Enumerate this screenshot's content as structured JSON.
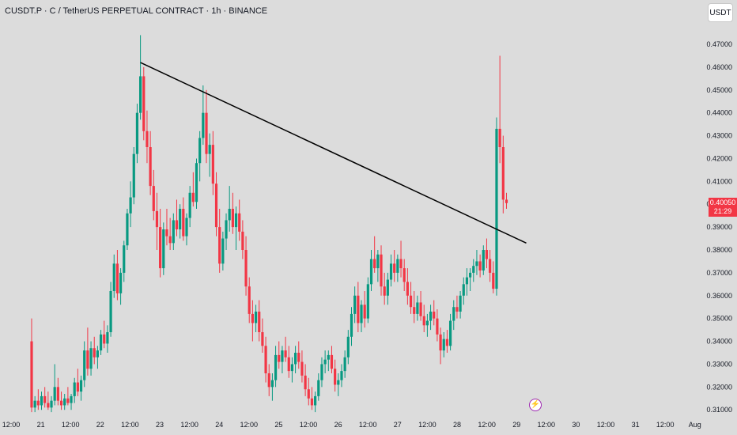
{
  "header": {
    "title": "CUSDT.P · C / TetherUS PERPETUAL CONTRACT · 1h · BINANCE"
  },
  "toolbar": {
    "currency_label": "USDT"
  },
  "last_price": {
    "value": "0.40050",
    "countdown": "21:29",
    "color": "#f23645"
  },
  "colors": {
    "up": "#089981",
    "down": "#f23645",
    "trendline": "#000000",
    "background": "#dcdcdc"
  },
  "icons": {
    "event_marker": "lightning-icon"
  },
  "chart_data": {
    "type": "candlestick",
    "title": "CUSDT.P · C / TetherUS PERPETUAL CONTRACT · 1h · BINANCE",
    "ylim": [
      0.308,
      0.479
    ],
    "y_ticks": [
      "0.47000",
      "0.46000",
      "0.45000",
      "0.44000",
      "0.43000",
      "0.42000",
      "0.41000",
      "0.40000",
      "0.39000",
      "0.38000",
      "0.37000",
      "0.36000",
      "0.35000",
      "0.34000",
      "0.33000",
      "0.32000",
      "0.31000"
    ],
    "x_ticks": [
      "12:00",
      "21",
      "12:00",
      "22",
      "12:00",
      "23",
      "12:00",
      "24",
      "12:00",
      "25",
      "12:00",
      "26",
      "12:00",
      "27",
      "12:00",
      "28",
      "12:00",
      "29",
      "12:00",
      "30",
      "12:00",
      "31",
      "12:00",
      "Aug"
    ],
    "grid": false,
    "series": [
      {
        "values": [
          [
            0.34,
            0.35,
            0.309,
            0.311
          ],
          [
            0.311,
            0.316,
            0.309,
            0.314
          ],
          [
            0.314,
            0.319,
            0.31,
            0.312
          ],
          [
            0.312,
            0.318,
            0.31,
            0.316
          ],
          [
            0.316,
            0.32,
            0.311,
            0.313
          ],
          [
            0.313,
            0.318,
            0.31,
            0.311
          ],
          [
            0.311,
            0.316,
            0.309,
            0.314
          ],
          [
            0.314,
            0.33,
            0.312,
            0.32
          ],
          [
            0.32,
            0.324,
            0.312,
            0.314
          ],
          [
            0.314,
            0.318,
            0.31,
            0.312
          ],
          [
            0.312,
            0.317,
            0.31,
            0.315
          ],
          [
            0.315,
            0.32,
            0.312,
            0.313
          ],
          [
            0.313,
            0.317,
            0.31,
            0.316
          ],
          [
            0.316,
            0.324,
            0.313,
            0.322
          ],
          [
            0.322,
            0.328,
            0.316,
            0.318
          ],
          [
            0.318,
            0.325,
            0.314,
            0.323
          ],
          [
            0.323,
            0.34,
            0.32,
            0.336
          ],
          [
            0.336,
            0.346,
            0.325,
            0.328
          ],
          [
            0.328,
            0.34,
            0.325,
            0.337
          ],
          [
            0.337,
            0.342,
            0.33,
            0.333
          ],
          [
            0.333,
            0.338,
            0.328,
            0.336
          ],
          [
            0.336,
            0.345,
            0.334,
            0.343
          ],
          [
            0.343,
            0.349,
            0.337,
            0.339
          ],
          [
            0.339,
            0.347,
            0.335,
            0.344
          ],
          [
            0.344,
            0.366,
            0.342,
            0.362
          ],
          [
            0.362,
            0.378,
            0.359,
            0.374
          ],
          [
            0.374,
            0.38,
            0.358,
            0.361
          ],
          [
            0.361,
            0.372,
            0.356,
            0.37
          ],
          [
            0.37,
            0.384,
            0.366,
            0.382
          ],
          [
            0.382,
            0.398,
            0.38,
            0.396
          ],
          [
            0.396,
            0.41,
            0.39,
            0.403
          ],
          [
            0.403,
            0.425,
            0.4,
            0.422
          ],
          [
            0.422,
            0.444,
            0.418,
            0.44
          ],
          [
            0.44,
            0.474,
            0.437,
            0.456
          ],
          [
            0.456,
            0.46,
            0.428,
            0.432
          ],
          [
            0.432,
            0.441,
            0.418,
            0.425
          ],
          [
            0.425,
            0.432,
            0.404,
            0.408
          ],
          [
            0.408,
            0.415,
            0.393,
            0.397
          ],
          [
            0.397,
            0.405,
            0.38,
            0.39
          ],
          [
            0.39,
            0.398,
            0.368,
            0.372
          ],
          [
            0.372,
            0.392,
            0.369,
            0.389
          ],
          [
            0.389,
            0.398,
            0.382,
            0.386
          ],
          [
            0.386,
            0.394,
            0.38,
            0.383
          ],
          [
            0.383,
            0.396,
            0.38,
            0.393
          ],
          [
            0.393,
            0.402,
            0.386,
            0.389
          ],
          [
            0.389,
            0.4,
            0.385,
            0.398
          ],
          [
            0.398,
            0.403,
            0.384,
            0.386
          ],
          [
            0.386,
            0.396,
            0.382,
            0.394
          ],
          [
            0.394,
            0.408,
            0.39,
            0.405
          ],
          [
            0.405,
            0.414,
            0.399,
            0.401
          ],
          [
            0.401,
            0.42,
            0.398,
            0.418
          ],
          [
            0.418,
            0.432,
            0.41,
            0.429
          ],
          [
            0.429,
            0.452,
            0.426,
            0.44
          ],
          [
            0.44,
            0.45,
            0.418,
            0.422
          ],
          [
            0.422,
            0.431,
            0.412,
            0.426
          ],
          [
            0.426,
            0.432,
            0.404,
            0.409
          ],
          [
            0.409,
            0.414,
            0.386,
            0.39
          ],
          [
            0.39,
            0.398,
            0.37,
            0.374
          ],
          [
            0.374,
            0.388,
            0.371,
            0.385
          ],
          [
            0.385,
            0.396,
            0.38,
            0.393
          ],
          [
            0.393,
            0.408,
            0.388,
            0.398
          ],
          [
            0.398,
            0.405,
            0.387,
            0.39
          ],
          [
            0.39,
            0.399,
            0.38,
            0.396
          ],
          [
            0.396,
            0.402,
            0.384,
            0.388
          ],
          [
            0.388,
            0.393,
            0.376,
            0.38
          ],
          [
            0.38,
            0.386,
            0.36,
            0.364
          ],
          [
            0.364,
            0.368,
            0.348,
            0.352
          ],
          [
            0.352,
            0.358,
            0.34,
            0.348
          ],
          [
            0.348,
            0.356,
            0.344,
            0.353
          ],
          [
            0.353,
            0.358,
            0.34,
            0.344
          ],
          [
            0.344,
            0.35,
            0.335,
            0.338
          ],
          [
            0.338,
            0.342,
            0.322,
            0.326
          ],
          [
            0.326,
            0.33,
            0.316,
            0.32
          ],
          [
            0.32,
            0.326,
            0.314,
            0.323
          ],
          [
            0.323,
            0.338,
            0.32,
            0.334
          ],
          [
            0.334,
            0.34,
            0.328,
            0.331
          ],
          [
            0.331,
            0.338,
            0.326,
            0.336
          ],
          [
            0.336,
            0.342,
            0.331,
            0.333
          ],
          [
            0.333,
            0.338,
            0.324,
            0.327
          ],
          [
            0.327,
            0.333,
            0.322,
            0.33
          ],
          [
            0.33,
            0.338,
            0.326,
            0.335
          ],
          [
            0.335,
            0.34,
            0.328,
            0.331
          ],
          [
            0.331,
            0.336,
            0.322,
            0.325
          ],
          [
            0.325,
            0.33,
            0.316,
            0.319
          ],
          [
            0.319,
            0.324,
            0.312,
            0.315
          ],
          [
            0.315,
            0.32,
            0.31,
            0.312
          ],
          [
            0.312,
            0.318,
            0.309,
            0.316
          ],
          [
            0.316,
            0.326,
            0.314,
            0.323
          ],
          [
            0.323,
            0.333,
            0.32,
            0.33
          ],
          [
            0.33,
            0.336,
            0.326,
            0.332
          ],
          [
            0.332,
            0.336,
            0.327,
            0.334
          ],
          [
            0.334,
            0.338,
            0.326,
            0.328
          ],
          [
            0.328,
            0.332,
            0.318,
            0.321
          ],
          [
            0.321,
            0.326,
            0.316,
            0.323
          ],
          [
            0.323,
            0.33,
            0.32,
            0.327
          ],
          [
            0.327,
            0.336,
            0.324,
            0.333
          ],
          [
            0.333,
            0.345,
            0.33,
            0.342
          ],
          [
            0.342,
            0.355,
            0.338,
            0.352
          ],
          [
            0.352,
            0.364,
            0.348,
            0.36
          ],
          [
            0.36,
            0.366,
            0.344,
            0.348
          ],
          [
            0.348,
            0.358,
            0.344,
            0.356
          ],
          [
            0.356,
            0.362,
            0.346,
            0.35
          ],
          [
            0.35,
            0.368,
            0.348,
            0.365
          ],
          [
            0.365,
            0.38,
            0.362,
            0.376
          ],
          [
            0.376,
            0.386,
            0.37,
            0.372
          ],
          [
            0.372,
            0.38,
            0.366,
            0.378
          ],
          [
            0.378,
            0.382,
            0.36,
            0.364
          ],
          [
            0.364,
            0.37,
            0.356,
            0.36
          ],
          [
            0.36,
            0.37,
            0.356,
            0.367
          ],
          [
            0.367,
            0.378,
            0.364,
            0.374
          ],
          [
            0.374,
            0.38,
            0.366,
            0.37
          ],
          [
            0.37,
            0.378,
            0.366,
            0.376
          ],
          [
            0.376,
            0.384,
            0.368,
            0.372
          ],
          [
            0.372,
            0.376,
            0.362,
            0.366
          ],
          [
            0.366,
            0.372,
            0.356,
            0.36
          ],
          [
            0.36,
            0.366,
            0.352,
            0.355
          ],
          [
            0.355,
            0.362,
            0.348,
            0.352
          ],
          [
            0.352,
            0.36,
            0.349,
            0.357
          ],
          [
            0.357,
            0.362,
            0.349,
            0.351
          ],
          [
            0.351,
            0.356,
            0.344,
            0.347
          ],
          [
            0.347,
            0.352,
            0.342,
            0.349
          ],
          [
            0.349,
            0.356,
            0.345,
            0.353
          ],
          [
            0.353,
            0.358,
            0.347,
            0.35
          ],
          [
            0.35,
            0.354,
            0.34,
            0.343
          ],
          [
            0.343,
            0.346,
            0.33,
            0.336
          ],
          [
            0.336,
            0.344,
            0.333,
            0.341
          ],
          [
            0.341,
            0.345,
            0.335,
            0.338
          ],
          [
            0.338,
            0.352,
            0.336,
            0.349
          ],
          [
            0.349,
            0.358,
            0.345,
            0.355
          ],
          [
            0.355,
            0.36,
            0.35,
            0.353
          ],
          [
            0.353,
            0.362,
            0.35,
            0.36
          ],
          [
            0.36,
            0.368,
            0.356,
            0.365
          ],
          [
            0.365,
            0.372,
            0.36,
            0.368
          ],
          [
            0.368,
            0.372,
            0.362,
            0.37
          ],
          [
            0.37,
            0.376,
            0.366,
            0.373
          ],
          [
            0.373,
            0.38,
            0.369,
            0.375
          ],
          [
            0.375,
            0.378,
            0.368,
            0.371
          ],
          [
            0.371,
            0.382,
            0.369,
            0.38
          ],
          [
            0.38,
            0.385,
            0.372,
            0.376
          ],
          [
            0.376,
            0.38,
            0.366,
            0.37
          ],
          [
            0.37,
            0.375,
            0.361,
            0.363
          ],
          [
            0.363,
            0.438,
            0.36,
            0.433
          ],
          [
            0.433,
            0.465,
            0.418,
            0.425
          ],
          [
            0.425,
            0.43,
            0.396,
            0.402
          ],
          [
            0.402,
            0.405,
            0.398,
            0.4005
          ]
        ]
      }
    ],
    "trendline": {
      "from": [
        33,
        0.462
      ],
      "to": [
        150,
        0.383
      ]
    }
  }
}
